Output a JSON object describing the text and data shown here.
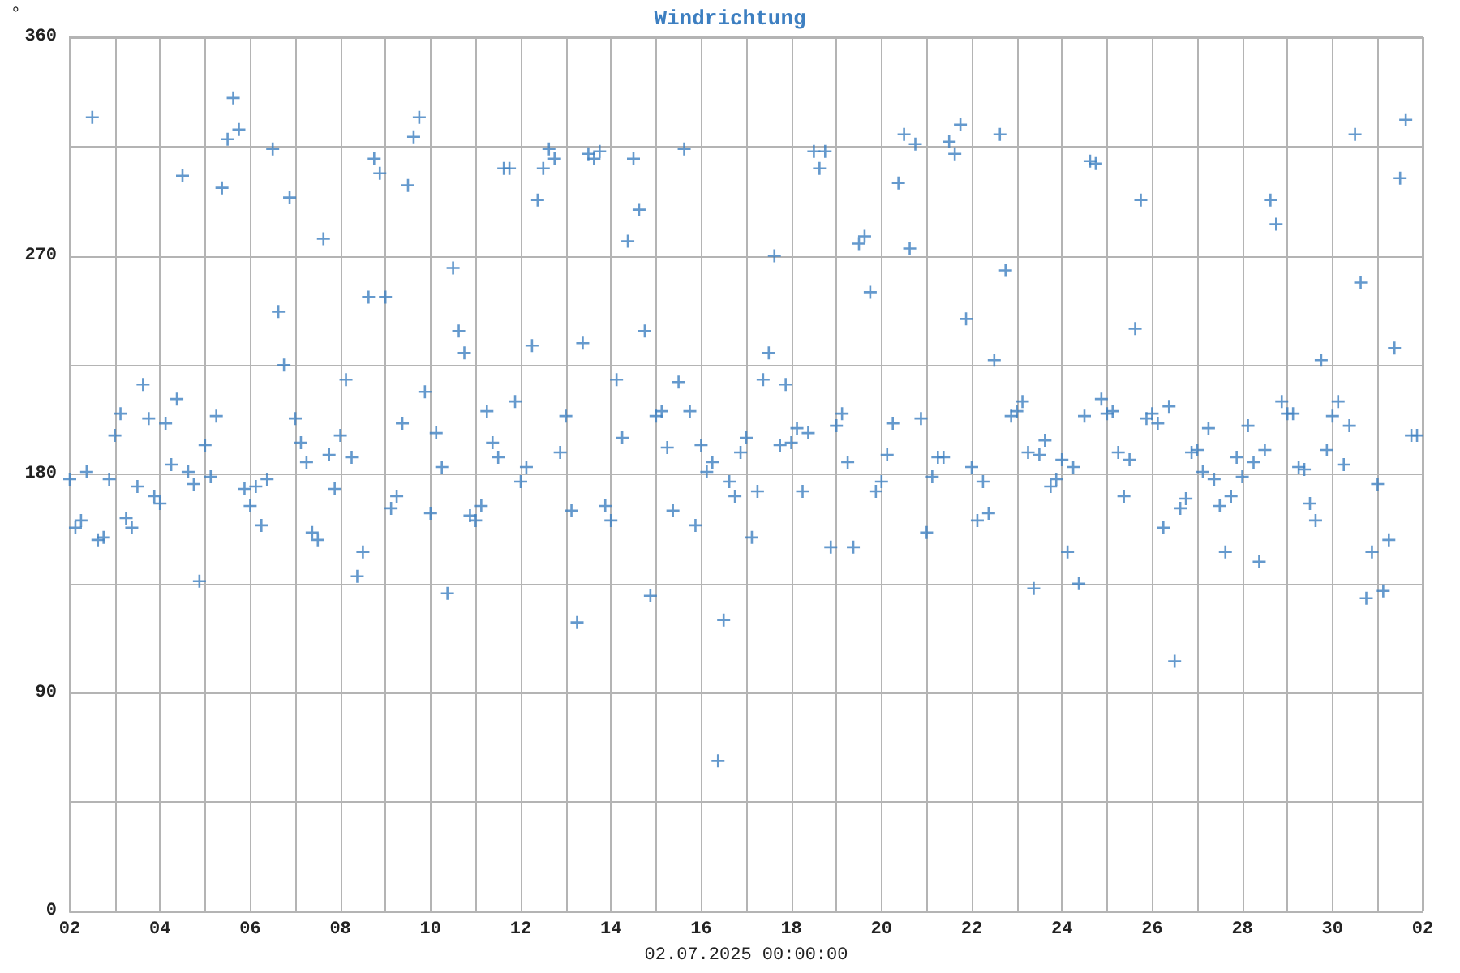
{
  "chart_data": {
    "type": "scatter",
    "title": "Windrichtung",
    "xlabel": "02.07.2025 00:00:00",
    "ylabel": "°",
    "x": [
      "2025-06-02T00:00",
      "2025-06-02T03:00",
      "2025-06-02T06:00",
      "2025-06-02T09:00",
      "2025-06-02T12:00",
      "2025-06-02T15:00",
      "2025-06-02T18:00",
      "2025-06-02T21:00",
      "2025-06-03T00:00",
      "2025-06-03T03:00",
      "2025-06-03T06:00",
      "2025-06-03T09:00",
      "2025-06-03T12:00",
      "2025-06-03T15:00",
      "2025-06-03T18:00",
      "2025-06-03T21:00",
      "2025-06-04T00:00",
      "2025-06-04T03:00",
      "2025-06-04T06:00",
      "2025-06-04T09:00",
      "2025-06-04T12:00",
      "2025-06-04T15:00",
      "2025-06-04T18:00",
      "2025-06-04T21:00",
      "2025-06-05T00:00",
      "2025-06-05T03:00",
      "2025-06-05T06:00",
      "2025-06-05T09:00",
      "2025-06-05T12:00",
      "2025-06-05T15:00",
      "2025-06-05T18:00",
      "2025-06-05T21:00",
      "2025-06-06T00:00",
      "2025-06-06T03:00",
      "2025-06-06T06:00",
      "2025-06-06T09:00",
      "2025-06-06T12:00",
      "2025-06-06T15:00",
      "2025-06-06T18:00",
      "2025-06-06T21:00",
      "2025-06-07T00:00",
      "2025-06-07T03:00",
      "2025-06-07T06:00",
      "2025-06-07T09:00",
      "2025-06-07T12:00",
      "2025-06-07T15:00",
      "2025-06-07T18:00",
      "2025-06-07T21:00",
      "2025-06-08T00:00",
      "2025-06-08T03:00",
      "2025-06-08T06:00",
      "2025-06-08T09:00",
      "2025-06-08T12:00",
      "2025-06-08T15:00",
      "2025-06-08T18:00",
      "2025-06-08T21:00",
      "2025-06-09T00:00",
      "2025-06-09T03:00",
      "2025-06-09T06:00",
      "2025-06-09T09:00",
      "2025-06-09T12:00",
      "2025-06-09T15:00",
      "2025-06-09T18:00",
      "2025-06-09T21:00",
      "2025-06-10T00:00",
      "2025-06-10T03:00",
      "2025-06-10T06:00",
      "2025-06-10T09:00",
      "2025-06-10T12:00",
      "2025-06-10T15:00",
      "2025-06-10T18:00",
      "2025-06-10T21:00",
      "2025-06-11T00:00",
      "2025-06-11T03:00",
      "2025-06-11T06:00",
      "2025-06-11T09:00",
      "2025-06-11T12:00",
      "2025-06-11T15:00",
      "2025-06-11T18:00",
      "2025-06-11T21:00",
      "2025-06-12T00:00",
      "2025-06-12T03:00",
      "2025-06-12T06:00",
      "2025-06-12T09:00",
      "2025-06-12T12:00",
      "2025-06-12T15:00",
      "2025-06-12T18:00",
      "2025-06-12T21:00",
      "2025-06-13T00:00",
      "2025-06-13T03:00",
      "2025-06-13T06:00",
      "2025-06-13T09:00",
      "2025-06-13T12:00",
      "2025-06-13T15:00",
      "2025-06-13T18:00",
      "2025-06-13T21:00",
      "2025-06-14T00:00",
      "2025-06-14T03:00",
      "2025-06-14T06:00",
      "2025-06-14T09:00",
      "2025-06-14T12:00",
      "2025-06-14T15:00",
      "2025-06-14T18:00",
      "2025-06-14T21:00",
      "2025-06-15T00:00",
      "2025-06-15T03:00",
      "2025-06-15T06:00",
      "2025-06-15T09:00",
      "2025-06-15T12:00",
      "2025-06-15T15:00",
      "2025-06-15T18:00",
      "2025-06-15T21:00",
      "2025-06-16T00:00",
      "2025-06-16T03:00",
      "2025-06-16T06:00",
      "2025-06-16T09:00",
      "2025-06-16T12:00",
      "2025-06-16T15:00",
      "2025-06-16T18:00",
      "2025-06-16T21:00",
      "2025-06-17T00:00",
      "2025-06-17T03:00",
      "2025-06-17T06:00",
      "2025-06-17T09:00",
      "2025-06-17T12:00",
      "2025-06-17T15:00",
      "2025-06-17T18:00",
      "2025-06-17T21:00",
      "2025-06-18T00:00",
      "2025-06-18T03:00",
      "2025-06-18T06:00",
      "2025-06-18T09:00",
      "2025-06-18T12:00",
      "2025-06-18T15:00",
      "2025-06-18T18:00",
      "2025-06-18T21:00",
      "2025-06-19T00:00",
      "2025-06-19T03:00",
      "2025-06-19T06:00",
      "2025-06-19T09:00",
      "2025-06-19T12:00",
      "2025-06-19T15:00",
      "2025-06-19T18:00",
      "2025-06-19T21:00",
      "2025-06-20T00:00",
      "2025-06-20T03:00",
      "2025-06-20T06:00",
      "2025-06-20T09:00",
      "2025-06-20T12:00",
      "2025-06-20T15:00",
      "2025-06-20T18:00",
      "2025-06-20T21:00",
      "2025-06-21T00:00",
      "2025-06-21T03:00",
      "2025-06-21T06:00",
      "2025-06-21T09:00",
      "2025-06-21T12:00",
      "2025-06-21T15:00",
      "2025-06-21T18:00",
      "2025-06-21T21:00",
      "2025-06-22T00:00",
      "2025-06-22T03:00",
      "2025-06-22T06:00",
      "2025-06-22T09:00",
      "2025-06-22T12:00",
      "2025-06-22T15:00",
      "2025-06-22T18:00",
      "2025-06-22T21:00",
      "2025-06-23T00:00",
      "2025-06-23T03:00",
      "2025-06-23T06:00",
      "2025-06-23T09:00",
      "2025-06-23T12:00",
      "2025-06-23T15:00",
      "2025-06-23T18:00",
      "2025-06-23T21:00",
      "2025-06-24T00:00",
      "2025-06-24T03:00",
      "2025-06-24T06:00",
      "2025-06-24T09:00",
      "2025-06-24T12:00",
      "2025-06-24T15:00",
      "2025-06-24T18:00",
      "2025-06-24T21:00",
      "2025-06-25T00:00",
      "2025-06-25T03:00",
      "2025-06-25T06:00",
      "2025-06-25T09:00",
      "2025-06-25T12:00",
      "2025-06-25T15:00",
      "2025-06-25T18:00",
      "2025-06-25T21:00",
      "2025-06-26T00:00",
      "2025-06-26T03:00",
      "2025-06-26T06:00",
      "2025-06-26T09:00",
      "2025-06-26T12:00",
      "2025-06-26T15:00",
      "2025-06-26T18:00",
      "2025-06-26T21:00",
      "2025-06-27T00:00",
      "2025-06-27T03:00",
      "2025-06-27T06:00",
      "2025-06-27T09:00",
      "2025-06-27T12:00",
      "2025-06-27T15:00",
      "2025-06-27T18:00",
      "2025-06-27T21:00",
      "2025-06-28T00:00",
      "2025-06-28T03:00",
      "2025-06-28T06:00",
      "2025-06-28T09:00",
      "2025-06-28T12:00",
      "2025-06-28T15:00",
      "2025-06-28T18:00",
      "2025-06-28T21:00",
      "2025-06-29T00:00",
      "2025-06-29T03:00",
      "2025-06-29T06:00",
      "2025-06-29T09:00",
      "2025-06-29T12:00",
      "2025-06-29T15:00",
      "2025-06-29T18:00",
      "2025-06-29T21:00",
      "2025-06-30T00:00",
      "2025-06-30T03:00",
      "2025-06-30T06:00",
      "2025-06-30T09:00",
      "2025-06-30T12:00",
      "2025-06-30T15:00",
      "2025-06-30T18:00",
      "2025-06-30T21:00",
      "2025-07-01T00:00",
      "2025-07-01T03:00",
      "2025-07-01T06:00",
      "2025-07-01T09:00",
      "2025-07-01T12:00",
      "2025-07-01T15:00",
      "2025-07-01T18:00",
      "2025-07-01T21:00"
    ],
    "series": [
      {
        "color": "#3d7fc1",
        "values": [
          178,
          158,
          161,
          181,
          327,
          153,
          154,
          178,
          196,
          205,
          162,
          158,
          175,
          217,
          203,
          171,
          168,
          201,
          184,
          211,
          303,
          181,
          176,
          136,
          192,
          179,
          204,
          298,
          318,
          335,
          322,
          174,
          167,
          175,
          159,
          178,
          314,
          247,
          225,
          294,
          203,
          193,
          185,
          156,
          153,
          277,
          188,
          174,
          196,
          219,
          187,
          138,
          148,
          253,
          310,
          304,
          253,
          166,
          171,
          201,
          299,
          319,
          327,
          214,
          164,
          197,
          183,
          131,
          265,
          239,
          230,
          163,
          161,
          167,
          206,
          193,
          187,
          306,
          306,
          210,
          177,
          183,
          233,
          293,
          306,
          314,
          310,
          189,
          204,
          165,
          119,
          234,
          312,
          310,
          313,
          167,
          161,
          219,
          195,
          276,
          310,
          289,
          239,
          130,
          204,
          206,
          191,
          165,
          218,
          314,
          206,
          159,
          192,
          181,
          185,
          62,
          120,
          177,
          171,
          189,
          195,
          154,
          173,
          219,
          230,
          270,
          192,
          217,
          193,
          199,
          173,
          197,
          313,
          306,
          313,
          150,
          200,
          205,
          185,
          150,
          275,
          278,
          255,
          173,
          177,
          188,
          201,
          300,
          320,
          273,
          316,
          203,
          156,
          179,
          187,
          187,
          317,
          312,
          324,
          244,
          183,
          161,
          177,
          164,
          227,
          320,
          264,
          204,
          206,
          210,
          189,
          133,
          188,
          194,
          175,
          178,
          186,
          148,
          183,
          135,
          204,
          309,
          308,
          211,
          205,
          206,
          189,
          171,
          186,
          240,
          293,
          203,
          205,
          201,
          158,
          208,
          103,
          166,
          170,
          189,
          190,
          181,
          199,
          178,
          167,
          148,
          171,
          187,
          179,
          200,
          185,
          144,
          190,
          293,
          283,
          210,
          205,
          205,
          183,
          182,
          168,
          161,
          227,
          190,
          204,
          210,
          184,
          200,
          320,
          259,
          129,
          148,
          176,
          132,
          153,
          232,
          302,
          326,
          196,
          196
        ]
      }
    ],
    "xlim": [
      "2025-06-02",
      "2025-07-02"
    ],
    "xticks": [
      {
        "value": "2025-06-02",
        "label": "02"
      },
      {
        "value": "2025-06-03",
        "label": null
      },
      {
        "value": "2025-06-04",
        "label": "04"
      },
      {
        "value": "2025-06-05",
        "label": null
      },
      {
        "value": "2025-06-06",
        "label": "06"
      },
      {
        "value": "2025-06-07",
        "label": null
      },
      {
        "value": "2025-06-08",
        "label": "08"
      },
      {
        "value": "2025-06-09",
        "label": null
      },
      {
        "value": "2025-06-10",
        "label": "10"
      },
      {
        "value": "2025-06-11",
        "label": null
      },
      {
        "value": "2025-06-12",
        "label": "12"
      },
      {
        "value": "2025-06-13",
        "label": null
      },
      {
        "value": "2025-06-14",
        "label": "14"
      },
      {
        "value": "2025-06-15",
        "label": null
      },
      {
        "value": "2025-06-16",
        "label": "16"
      },
      {
        "value": "2025-06-17",
        "label": null
      },
      {
        "value": "2025-06-18",
        "label": "18"
      },
      {
        "value": "2025-06-19",
        "label": null
      },
      {
        "value": "2025-06-20",
        "label": "20"
      },
      {
        "value": "2025-06-21",
        "label": null
      },
      {
        "value": "2025-06-22",
        "label": "22"
      },
      {
        "value": "2025-06-23",
        "label": null
      },
      {
        "value": "2025-06-24",
        "label": "24"
      },
      {
        "value": "2025-06-25",
        "label": null
      },
      {
        "value": "2025-06-26",
        "label": "26"
      },
      {
        "value": "2025-06-27",
        "label": null
      },
      {
        "value": "2025-06-28",
        "label": "28"
      },
      {
        "value": "2025-06-29",
        "label": null
      },
      {
        "value": "2025-06-30",
        "label": "30"
      },
      {
        "value": "2025-07-01",
        "label": null
      },
      {
        "value": "2025-07-02",
        "label": "02"
      }
    ],
    "ylim": [
      0,
      360
    ],
    "yticks": [
      0,
      {
        "value": 45,
        "label": null
      },
      90,
      {
        "value": 135,
        "label": null
      },
      180,
      {
        "value": 225,
        "label": null
      },
      270,
      {
        "value": 315,
        "label": null
      },
      360
    ],
    "grid": true,
    "marker": "cross"
  }
}
